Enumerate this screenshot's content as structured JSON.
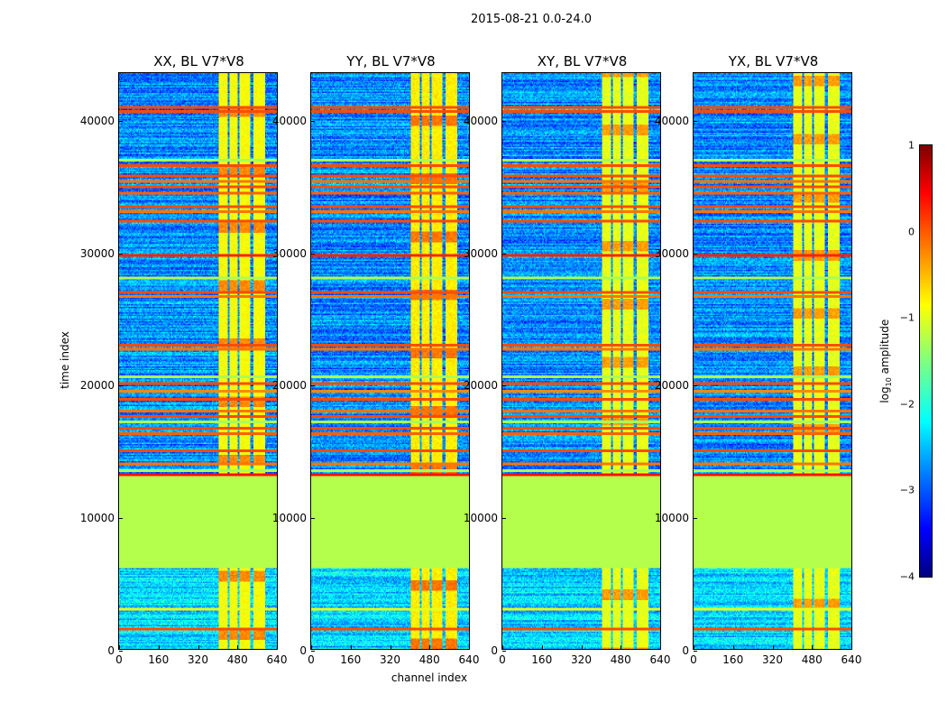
{
  "suptitle": "2015-08-21 0.0-24.0",
  "chart_data": {
    "type": "heatmap",
    "colormap": "jet",
    "xlabel": "channel index",
    "ylabel": "time index",
    "xlim": [
      0,
      640
    ],
    "ylim": [
      0,
      43600
    ],
    "xticks": [
      "0",
      "160",
      "320",
      "480",
      "640"
    ],
    "yticks": [
      "0",
      "10000",
      "20000",
      "30000",
      "40000"
    ],
    "panels": [
      {
        "title": "XX, BL V7*V8",
        "band_level": -0.9
      },
      {
        "title": "YY, BL V7*V8",
        "band_level": -0.8
      },
      {
        "title": "XY, BL V7*V8",
        "band_level": -1.0
      },
      {
        "title": "YX, BL V7*V8",
        "band_level": -1.0
      }
    ],
    "background_level": -2.7,
    "bright_channel_bands": [
      [
        405,
        440
      ],
      [
        447,
        478
      ],
      [
        487,
        532
      ],
      [
        545,
        592
      ]
    ],
    "flagged_block": {
      "time_range": [
        6100,
        13200
      ],
      "value": -1.25
    },
    "flagged_rows": [
      {
        "time": 41000,
        "value": 0.0
      },
      {
        "time": 40700,
        "value": 0.0
      },
      {
        "time": 37000,
        "value": -1.3
      },
      {
        "time": 36600,
        "value": 0.0
      },
      {
        "time": 35800,
        "value": 0.0
      },
      {
        "time": 35400,
        "value": -0.2
      },
      {
        "time": 35000,
        "value": 0.0
      },
      {
        "time": 34500,
        "value": -0.1
      },
      {
        "time": 33500,
        "value": 0.0
      },
      {
        "time": 33100,
        "value": -0.2
      },
      {
        "time": 32400,
        "value": 0.0
      },
      {
        "time": 29800,
        "value": 0.2
      },
      {
        "time": 28100,
        "value": -1.3
      },
      {
        "time": 27000,
        "value": 0.0
      },
      {
        "time": 26700,
        "value": -0.2
      },
      {
        "time": 23000,
        "value": 0.0
      },
      {
        "time": 22700,
        "value": -0.2
      },
      {
        "time": 20600,
        "value": -1.3
      },
      {
        "time": 20100,
        "value": 0.0
      },
      {
        "time": 19500,
        "value": -0.3
      },
      {
        "time": 18900,
        "value": 0.0
      },
      {
        "time": 18000,
        "value": -0.2
      },
      {
        "time": 17600,
        "value": 0.0
      },
      {
        "time": 17200,
        "value": -1.3
      },
      {
        "time": 16700,
        "value": 0.0
      },
      {
        "time": 16300,
        "value": -0.1
      },
      {
        "time": 15000,
        "value": 0.0
      },
      {
        "time": 14000,
        "value": -0.2
      },
      {
        "time": 13500,
        "value": -1.3
      },
      {
        "time": 13200,
        "value": 0.3
      },
      {
        "time": 3000,
        "value": -1.0
      },
      {
        "time": 1500,
        "value": 0.0
      }
    ],
    "colorbar": {
      "label": "amplitude",
      "label_prefix": "log",
      "label_sub": "10",
      "range": [
        -4,
        1
      ],
      "ticks": [
        "1",
        "0",
        "−1",
        "−2",
        "−3",
        "−4"
      ],
      "tick_values": [
        1,
        0,
        -1,
        -2,
        -3,
        -4
      ]
    }
  }
}
